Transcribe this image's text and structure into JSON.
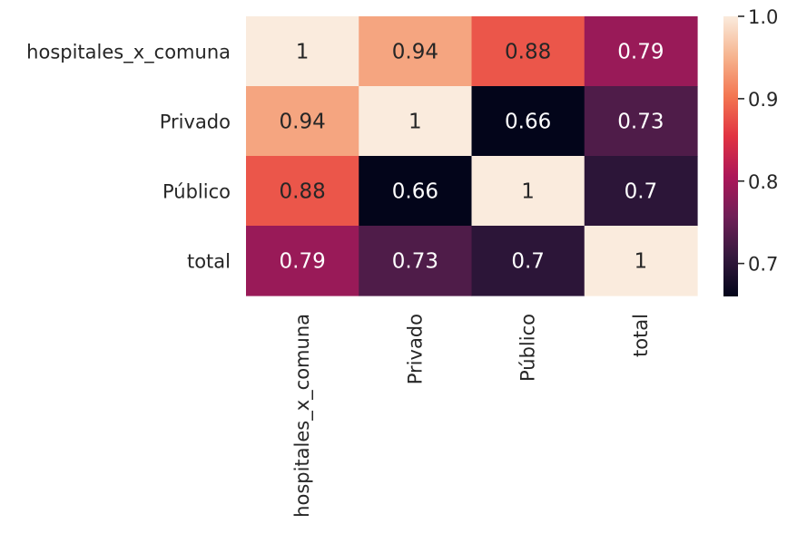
{
  "chart_data": {
    "type": "heatmap",
    "title": "",
    "xlabel": "",
    "ylabel": "",
    "x_categories": [
      "hospitales_x_comuna",
      "Privado",
      "Público",
      "total"
    ],
    "y_categories": [
      "hospitales_x_comuna",
      "Privado",
      "Público",
      "total"
    ],
    "values": [
      [
        1.0,
        0.94,
        0.88,
        0.79
      ],
      [
        0.94,
        1.0,
        0.66,
        0.73
      ],
      [
        0.88,
        0.66,
        1.0,
        0.7
      ],
      [
        0.79,
        0.73,
        0.7,
        1.0
      ]
    ],
    "cell_labels": [
      [
        "1",
        "0.94",
        "0.88",
        "0.79"
      ],
      [
        "0.94",
        "1",
        "0.66",
        "0.73"
      ],
      [
        "0.88",
        "0.66",
        "1",
        "0.7"
      ],
      [
        "0.79",
        "0.73",
        "0.7",
        "1"
      ]
    ],
    "colorbar": {
      "min": 0.66,
      "max": 1.0,
      "ticks": [
        0.7,
        0.8,
        0.9,
        1.0
      ],
      "tick_labels": [
        "0.7",
        "0.8",
        "0.9",
        "1.0"
      ],
      "colormap": "rocket",
      "colors": [
        "#03051a",
        "#35193e",
        "#701f57",
        "#ad1759",
        "#e13342",
        "#f37651",
        "#f6b48f",
        "#faebdd"
      ]
    }
  }
}
